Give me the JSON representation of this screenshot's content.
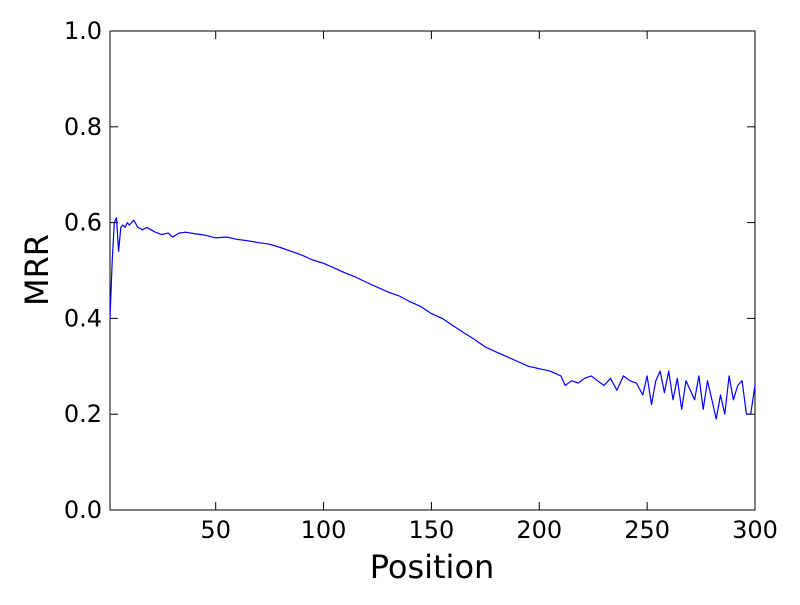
{
  "chart_data": {
    "type": "line",
    "xlabel": "Position",
    "ylabel": "MRR",
    "xlim": [
      1,
      300
    ],
    "ylim": [
      0.0,
      1.0
    ],
    "grid": false,
    "xticks": [
      50,
      100,
      150,
      200,
      250,
      300
    ],
    "xtick_labels": [
      "50",
      "100",
      "150",
      "200",
      "250",
      "300"
    ],
    "yticks": [
      0.0,
      0.2,
      0.4,
      0.6,
      0.8,
      1.0
    ],
    "ytick_labels": [
      "0.0",
      "0.2",
      "0.4",
      "0.6",
      "0.8",
      "1.0"
    ],
    "series": [
      {
        "color": "#0000ff",
        "x": [
          1,
          2,
          3,
          4,
          5,
          6,
          7,
          8,
          9,
          10,
          12,
          14,
          16,
          18,
          20,
          22,
          25,
          28,
          30,
          33,
          36,
          40,
          45,
          50,
          55,
          60,
          65,
          70,
          75,
          80,
          85,
          90,
          95,
          100,
          105,
          110,
          115,
          120,
          125,
          130,
          135,
          140,
          145,
          150,
          155,
          160,
          165,
          170,
          175,
          180,
          185,
          190,
          195,
          200,
          205,
          210,
          212,
          215,
          218,
          221,
          224,
          227,
          230,
          233,
          236,
          239,
          242,
          245,
          248,
          250,
          252,
          254,
          256,
          258,
          260,
          262,
          264,
          266,
          268,
          270,
          272,
          274,
          276,
          278,
          280,
          282,
          284,
          286,
          288,
          290,
          292,
          294,
          296,
          298,
          300
        ],
        "y": [
          0.4,
          0.52,
          0.6,
          0.61,
          0.54,
          0.59,
          0.595,
          0.59,
          0.6,
          0.595,
          0.605,
          0.59,
          0.585,
          0.59,
          0.585,
          0.58,
          0.575,
          0.578,
          0.57,
          0.578,
          0.58,
          0.577,
          0.574,
          0.568,
          0.57,
          0.565,
          0.562,
          0.558,
          0.555,
          0.548,
          0.54,
          0.532,
          0.522,
          0.515,
          0.505,
          0.495,
          0.486,
          0.475,
          0.465,
          0.455,
          0.447,
          0.435,
          0.425,
          0.41,
          0.4,
          0.385,
          0.37,
          0.356,
          0.34,
          0.33,
          0.32,
          0.31,
          0.3,
          0.295,
          0.29,
          0.28,
          0.26,
          0.27,
          0.265,
          0.275,
          0.28,
          0.27,
          0.26,
          0.275,
          0.25,
          0.28,
          0.27,
          0.265,
          0.24,
          0.28,
          0.22,
          0.27,
          0.29,
          0.245,
          0.29,
          0.23,
          0.275,
          0.21,
          0.27,
          0.25,
          0.23,
          0.28,
          0.21,
          0.27,
          0.23,
          0.19,
          0.24,
          0.2,
          0.28,
          0.23,
          0.26,
          0.27,
          0.2,
          0.2,
          0.26
        ]
      }
    ]
  }
}
